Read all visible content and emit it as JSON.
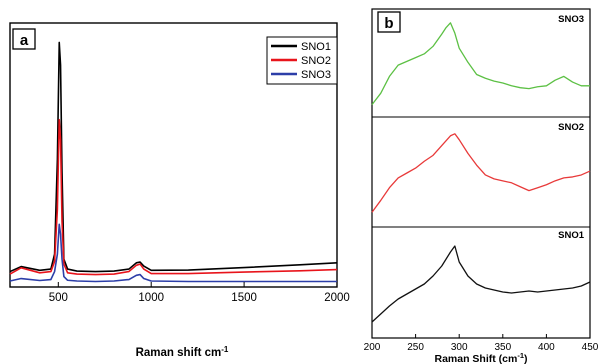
{
  "chart_data": [
    {
      "panel": "a",
      "type": "line",
      "title": "",
      "xlabel": "Raman shift cm",
      "xlabel_sup": "-1",
      "ylabel": "",
      "xlim": [
        240,
        2000
      ],
      "ylim": [
        0,
        1
      ],
      "xticks": [
        500,
        1000,
        1500,
        2000
      ],
      "legend_position": "top-right",
      "y_unit_note": "relative intensity (no printed y axis values)",
      "series": [
        {
          "name": "SNO1",
          "color": "#000000",
          "x": [
            240,
            300,
            400,
            460,
            480,
            495,
            505,
            512,
            520,
            530,
            550,
            600,
            700,
            800,
            880,
            920,
            940,
            960,
            1000,
            1200,
            1500,
            1800,
            2000
          ],
          "y": [
            0.05,
            0.07,
            0.055,
            0.06,
            0.12,
            0.5,
            0.97,
            0.88,
            0.45,
            0.1,
            0.06,
            0.052,
            0.05,
            0.052,
            0.06,
            0.085,
            0.088,
            0.072,
            0.055,
            0.056,
            0.066,
            0.077,
            0.085
          ]
        },
        {
          "name": "SNO2",
          "color": "#e8141b",
          "x": [
            240,
            300,
            400,
            460,
            480,
            495,
            505,
            512,
            520,
            530,
            550,
            600,
            700,
            800,
            880,
            920,
            940,
            960,
            1000,
            1200,
            1500,
            1800,
            2000
          ],
          "y": [
            0.04,
            0.065,
            0.045,
            0.05,
            0.09,
            0.3,
            0.66,
            0.58,
            0.25,
            0.08,
            0.045,
            0.04,
            0.038,
            0.04,
            0.05,
            0.075,
            0.08,
            0.06,
            0.042,
            0.042,
            0.048,
            0.053,
            0.058
          ]
        },
        {
          "name": "SNO3",
          "color": "#2c3ea8",
          "x": [
            240,
            300,
            400,
            460,
            480,
            495,
            505,
            512,
            520,
            530,
            550,
            600,
            700,
            800,
            880,
            920,
            940,
            960,
            1000,
            1200,
            1500,
            1800,
            2000
          ],
          "y": [
            0.012,
            0.022,
            0.014,
            0.018,
            0.05,
            0.12,
            0.24,
            0.2,
            0.1,
            0.03,
            0.015,
            0.012,
            0.01,
            0.012,
            0.018,
            0.035,
            0.038,
            0.022,
            0.012,
            0.01,
            0.01,
            0.01,
            0.01
          ]
        }
      ]
    },
    {
      "panel": "b",
      "type": "line",
      "title": "",
      "xlabel": "Raman Shift (cm",
      "xlabel_sup": "-1",
      "xlabel_close": ")",
      "ylabel": "",
      "xlim": [
        200,
        450
      ],
      "ylim": [
        0,
        1
      ],
      "xticks": [
        200,
        250,
        300,
        350,
        400,
        450
      ],
      "subplots": [
        {
          "label": "SNO3",
          "color": "#5cc044",
          "x": [
            200,
            210,
            220,
            230,
            240,
            250,
            260,
            270,
            280,
            285,
            290,
            295,
            300,
            310,
            320,
            330,
            340,
            350,
            360,
            370,
            380,
            390,
            400,
            410,
            420,
            430,
            440,
            450
          ],
          "y": [
            0.1,
            0.22,
            0.4,
            0.52,
            0.56,
            0.6,
            0.64,
            0.72,
            0.85,
            0.92,
            0.97,
            0.86,
            0.7,
            0.55,
            0.42,
            0.38,
            0.35,
            0.33,
            0.3,
            0.28,
            0.27,
            0.29,
            0.3,
            0.36,
            0.4,
            0.34,
            0.3,
            0.3
          ]
        },
        {
          "label": "SNO2",
          "color": "#e83a3a",
          "x": [
            200,
            210,
            220,
            230,
            240,
            250,
            260,
            270,
            280,
            290,
            295,
            300,
            310,
            320,
            330,
            340,
            350,
            360,
            370,
            380,
            390,
            400,
            410,
            420,
            430,
            440,
            450
          ],
          "y": [
            0.1,
            0.22,
            0.35,
            0.45,
            0.5,
            0.55,
            0.62,
            0.68,
            0.78,
            0.88,
            0.9,
            0.84,
            0.7,
            0.58,
            0.48,
            0.44,
            0.42,
            0.4,
            0.36,
            0.32,
            0.35,
            0.38,
            0.42,
            0.45,
            0.46,
            0.48,
            0.52
          ]
        },
        {
          "label": "SNO1",
          "color": "#111111",
          "x": [
            200,
            210,
            220,
            230,
            240,
            250,
            260,
            270,
            280,
            290,
            295,
            300,
            310,
            320,
            330,
            340,
            350,
            360,
            370,
            380,
            390,
            400,
            410,
            420,
            430,
            440,
            450
          ],
          "y": [
            0.12,
            0.2,
            0.28,
            0.35,
            0.4,
            0.45,
            0.5,
            0.58,
            0.68,
            0.82,
            0.88,
            0.72,
            0.58,
            0.5,
            0.46,
            0.44,
            0.42,
            0.41,
            0.42,
            0.43,
            0.42,
            0.43,
            0.44,
            0.45,
            0.46,
            0.48,
            0.52
          ]
        }
      ]
    }
  ]
}
